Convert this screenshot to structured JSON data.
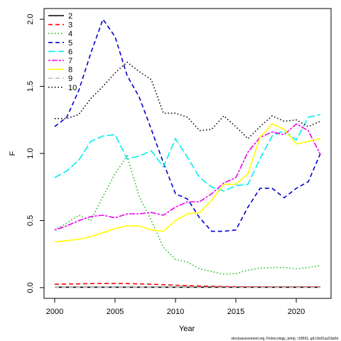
{
  "chart_data": {
    "type": "line",
    "xlabel": "Year",
    "ylabel": "F",
    "footnote": "stockassessment.org, Fishecology_temp, r18591, git:c9c81ac53a0d",
    "x": [
      2000,
      2001,
      2002,
      2003,
      2004,
      2005,
      2006,
      2007,
      2008,
      2009,
      2010,
      2011,
      2012,
      2013,
      2014,
      2015,
      2016,
      2017,
      2018,
      2019,
      2020,
      2021,
      2022
    ],
    "xlim": [
      1999.12,
      2022.88
    ],
    "xticks": [
      2000,
      2005,
      2010,
      2015,
      2020
    ],
    "ylim": [
      -0.08,
      2.08
    ],
    "yticks": [
      {
        "value": 0,
        "label": "0.0"
      },
      0.5,
      {
        "value": 1,
        "label": "1.0"
      },
      1.5,
      {
        "value": 2,
        "label": "2.0"
      }
    ],
    "legend": "top-left",
    "series": [
      {
        "name": "2",
        "color": "#000000",
        "linestyle": "solid",
        "values": [
          0.003,
          0.003,
          0.003,
          0.003,
          0.003,
          0.003,
          0.003,
          0.003,
          0.003,
          0.003,
          0.003,
          0.003,
          0.003,
          0.003,
          0.003,
          0.003,
          0.003,
          0.003,
          0.003,
          0.003,
          0.003,
          0.003,
          0.003
        ]
      },
      {
        "name": "3",
        "color": "#ff0000",
        "linestyle": "dashed",
        "values": [
          0.025,
          0.027,
          0.028,
          0.03,
          0.031,
          0.031,
          0.03,
          0.028,
          0.025,
          0.022,
          0.018,
          0.015,
          0.012,
          0.01,
          0.008,
          0.007,
          0.006,
          0.005,
          0.005,
          0.005,
          0.005,
          0.005,
          0.005
        ]
      },
      {
        "name": "4",
        "color": "#22bb22",
        "linestyle": "dotted",
        "values": [
          0.43,
          0.48,
          0.54,
          0.5,
          0.68,
          0.85,
          0.98,
          0.68,
          0.5,
          0.3,
          0.21,
          0.19,
          0.14,
          0.12,
          0.1,
          0.105,
          0.13,
          0.145,
          0.15,
          0.15,
          0.14,
          0.15,
          0.165
        ]
      },
      {
        "name": "5",
        "color": "#0000cc",
        "linestyle": "dashed",
        "values": [
          1.2,
          1.27,
          1.47,
          1.75,
          2.0,
          1.87,
          1.58,
          1.42,
          1.18,
          0.93,
          0.7,
          0.66,
          0.52,
          0.42,
          0.42,
          0.43,
          0.6,
          0.74,
          0.74,
          0.67,
          0.74,
          0.79,
          1.0
        ]
      },
      {
        "name": "6",
        "color": "#00eeee",
        "linestyle": "longdash",
        "values": [
          0.82,
          0.87,
          0.95,
          1.09,
          1.13,
          1.14,
          0.96,
          0.98,
          1.02,
          0.9,
          1.11,
          0.97,
          0.82,
          0.75,
          0.72,
          0.76,
          0.77,
          0.96,
          1.13,
          1.17,
          1.1,
          1.27,
          1.29
        ]
      },
      {
        "name": "7",
        "color": "#ee00ee",
        "linestyle": "twodash",
        "values": [
          0.43,
          0.46,
          0.5,
          0.53,
          0.54,
          0.52,
          0.55,
          0.55,
          0.56,
          0.54,
          0.6,
          0.64,
          0.64,
          0.7,
          0.78,
          0.82,
          1.01,
          1.12,
          1.16,
          1.14,
          1.22,
          1.17,
          0.99
        ]
      },
      {
        "name": "8",
        "color": "#ffff00",
        "linestyle": "solid",
        "values": [
          0.34,
          0.35,
          0.36,
          0.38,
          0.41,
          0.44,
          0.46,
          0.46,
          0.43,
          0.42,
          0.5,
          0.55,
          0.56,
          0.65,
          0.77,
          0.77,
          0.85,
          1.12,
          1.22,
          1.18,
          1.07,
          1.09,
          1.11
        ]
      },
      {
        "name": "9",
        "color": "#bebebe",
        "linestyle": "dashed",
        "values": [
          0.002,
          0.002,
          0.002,
          0.002,
          0.002,
          0.002,
          0.002,
          0.002,
          0.002,
          0.002,
          0.002,
          0.002,
          0.002,
          0.002,
          0.002,
          0.002,
          0.002,
          0.002,
          0.002,
          0.002,
          0.002,
          0.002,
          0.002
        ]
      },
      {
        "name": "10",
        "color": "#000000",
        "linestyle": "dotted",
        "values": [
          1.26,
          1.26,
          1.29,
          1.41,
          1.5,
          1.6,
          1.68,
          1.61,
          1.55,
          1.3,
          1.3,
          1.27,
          1.17,
          1.18,
          1.28,
          1.2,
          1.11,
          1.2,
          1.28,
          1.24,
          1.25,
          1.2,
          1.24
        ]
      }
    ]
  }
}
